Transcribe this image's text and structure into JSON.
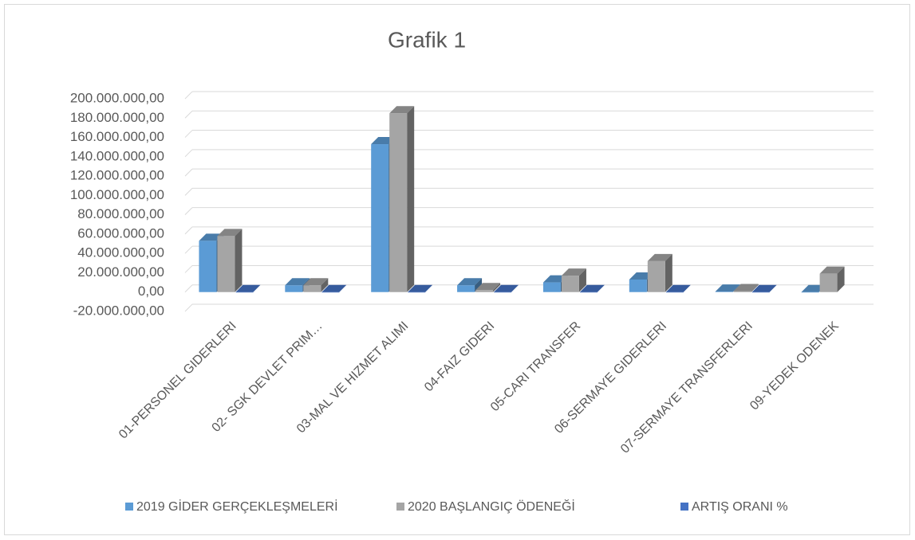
{
  "chart_data": {
    "type": "bar3d",
    "title": "Grafik 1",
    "categories": [
      "01-PERSONEL GIDERLERI",
      "02- SGK DEVLET PRIM…",
      "03-MAL VE HIZMET ALIMI",
      "04-FAIZ GIDERI",
      "05-CARI TRANSFER",
      "06-SERMAYE GIDERLERI",
      "07-SERMAYE TRANSFERLERI",
      "09-YEDEK ODENEK"
    ],
    "series": [
      {
        "name": "2019 GİDER GERÇEKLEŞMELERİ",
        "color": "#5b9bd5",
        "values": [
          53000000,
          7000000,
          153000000,
          7000000,
          10000000,
          13000000,
          500000,
          0
        ]
      },
      {
        "name": "2020 BAŞLANGIÇ ÖDENEĞİ",
        "color": "#a5a5a5",
        "values": [
          58000000,
          7000000,
          185000000,
          2000000,
          17000000,
          32000000,
          1000000,
          19000000
        ]
      },
      {
        "name": "ARTIŞ ORANI %",
        "color": "#4472c4",
        "values": [
          9,
          0,
          21,
          -71,
          70,
          146,
          100,
          null
        ]
      }
    ],
    "ylim": [
      -20000000,
      200000000
    ],
    "yticks": [
      {
        "value": -20000000,
        "label": "-20.000.000,00"
      },
      {
        "value": 0,
        "label": "0,00"
      },
      {
        "value": 20000000,
        "label": "20.000.000,00"
      },
      {
        "value": 40000000,
        "label": "40.000.000,00"
      },
      {
        "value": 60000000,
        "label": "60.000.000,00"
      },
      {
        "value": 80000000,
        "label": "80.000.000,00"
      },
      {
        "value": 100000000,
        "label": "100.000.000,00"
      },
      {
        "value": 120000000,
        "label": "120.000.000,00"
      },
      {
        "value": 140000000,
        "label": "140.000.000,00"
      },
      {
        "value": 160000000,
        "label": "160.000.000,00"
      },
      {
        "value": 180000000,
        "label": "180.000.000,00"
      },
      {
        "value": 200000000,
        "label": "200.000.000,00"
      }
    ],
    "grid": true,
    "legend": "bottom"
  }
}
